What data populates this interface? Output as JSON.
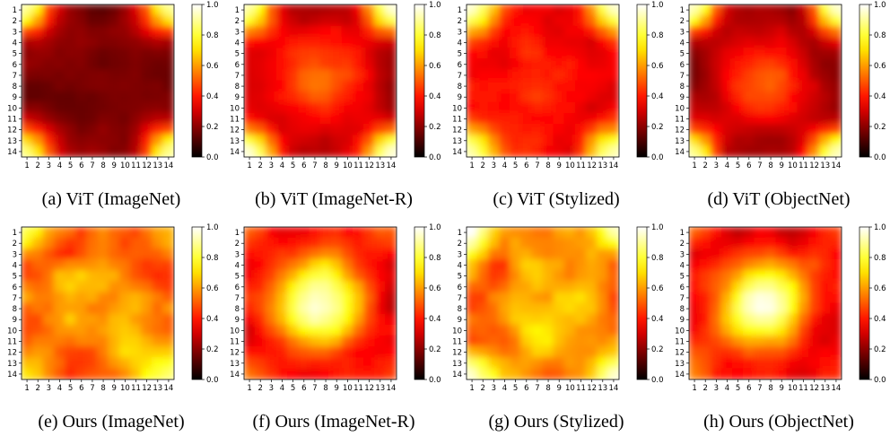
{
  "chart_data": {
    "type": "heatmap",
    "grid_size": 14,
    "x_ticks": [
      "1",
      "2",
      "3",
      "4",
      "5",
      "6",
      "7",
      "8",
      "9",
      "10",
      "11",
      "12",
      "13",
      "14"
    ],
    "y_ticks": [
      "1",
      "2",
      "3",
      "4",
      "5",
      "6",
      "7",
      "8",
      "9",
      "10",
      "11",
      "12",
      "13",
      "14"
    ],
    "colorbar": {
      "colormap": "hot",
      "range": [
        0.0,
        1.0
      ],
      "ticks": [
        "0.0",
        "0.2",
        "0.4",
        "0.6",
        "0.8",
        "1.0"
      ]
    },
    "panels": [
      {
        "caption": "(a) ViT (ImageNet)",
        "pattern": "corners",
        "corner": 0.9,
        "center": 0.0,
        "base": 0.18,
        "noise": 0.1,
        "seed": 1
      },
      {
        "caption": "(b) ViT (ImageNet-R)",
        "pattern": "corners",
        "corner": 0.9,
        "center": 0.35,
        "base": 0.25,
        "noise": 0.12,
        "seed": 2
      },
      {
        "caption": "(c) ViT (Stylized)",
        "pattern": "corners",
        "corner": 0.8,
        "center": 0.1,
        "base": 0.35,
        "noise": 0.15,
        "seed": 3
      },
      {
        "caption": "(d) ViT (ObjectNet)",
        "pattern": "corners",
        "corner": 0.9,
        "center": 0.35,
        "base": 0.2,
        "noise": 0.12,
        "seed": 4
      },
      {
        "caption": "(e) Ours (ImageNet)",
        "pattern": "noisy",
        "corner": 0.4,
        "center": 0.2,
        "base": 0.5,
        "noise": 0.28,
        "seed": 5
      },
      {
        "caption": "(f) Ours (ImageNet-R)",
        "pattern": "center",
        "corner": 0.2,
        "center": 0.75,
        "base": 0.3,
        "noise": 0.15,
        "seed": 6
      },
      {
        "caption": "(g) Ours (Stylized)",
        "pattern": "noisy",
        "corner": 0.6,
        "center": 0.25,
        "base": 0.5,
        "noise": 0.25,
        "seed": 7
      },
      {
        "caption": "(h) Ours (ObjectNet)",
        "pattern": "center",
        "corner": 0.2,
        "center": 0.8,
        "base": 0.3,
        "noise": 0.15,
        "seed": 8
      }
    ]
  }
}
